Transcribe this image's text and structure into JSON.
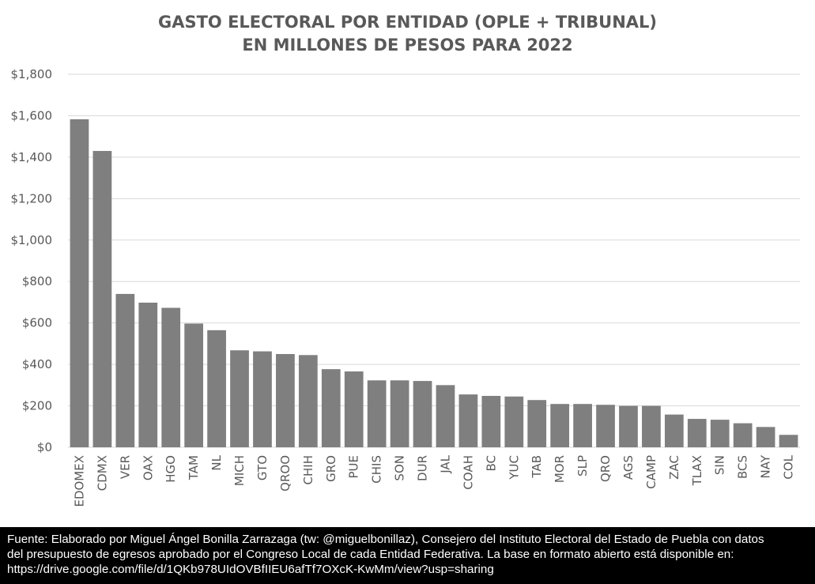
{
  "chart_data": {
    "type": "bar",
    "title": [
      "GASTO ELECTORAL POR ENTIDAD (OPLE + TRIBUNAL)",
      "EN MILLONES DE PESOS PARA 2022"
    ],
    "xlabel": "",
    "ylabel": "",
    "ylim": [
      0,
      1800
    ],
    "yticks": [
      0,
      200,
      400,
      600,
      800,
      1000,
      1200,
      1400,
      1600,
      1800
    ],
    "ytick_labels": [
      "$0",
      "$200",
      "$400",
      "$600",
      "$800",
      "$1,000",
      "$1,200",
      "$1,400",
      "$1,600",
      "$1,800"
    ],
    "grid": true,
    "bar_color": "#7f7f7f",
    "categories": [
      "EDOMEX",
      "CDMX",
      "VER",
      "OAX",
      "HGO",
      "TAM",
      "NL",
      "MICH",
      "GTO",
      "QROO",
      "CHIH",
      "GRO",
      "PUE",
      "CHIS",
      "SON",
      "DUR",
      "JAL",
      "COAH",
      "BC",
      "YUC",
      "TAB",
      "MOR",
      "SLP",
      "QRO",
      "AGS",
      "CAMP",
      "ZAC",
      "TLAX",
      "SIN",
      "BCS",
      "NAY",
      "COL"
    ],
    "values": [
      1583,
      1430,
      740,
      698,
      673,
      597,
      565,
      468,
      463,
      450,
      445,
      377,
      366,
      323,
      323,
      320,
      300,
      255,
      248,
      245,
      228,
      209,
      209,
      205,
      200,
      200,
      158,
      137,
      133,
      116,
      98,
      60
    ]
  },
  "footer": {
    "lines": [
      "Fuente: Elaborado por Miguel Ángel Bonilla Zarrazaga (tw: @miguelbonillaz), Consejero del Instituto Electoral del Estado de Puebla con datos",
      "del presupuesto de egresos aprobado por el Congreso Local de cada Entidad Federativa. La base en formato abierto está disponible en:",
      "https://drive.google.com/file/d/1QKb978UIdOVBfIIEU6afTf7OXcK-KwMm/view?usp=sharing"
    ]
  }
}
